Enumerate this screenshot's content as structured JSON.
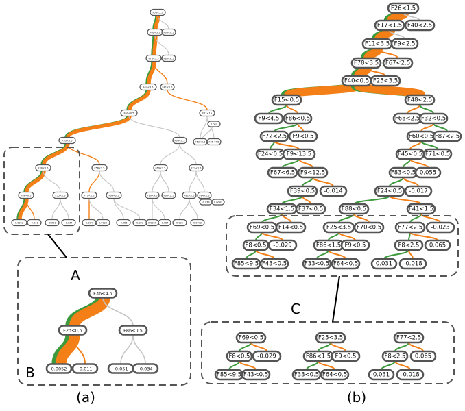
{
  "colors": {
    "orange": "#f57f17",
    "green": "#3c9a3c",
    "gray": "#c4c4c4",
    "node_stroke": "#555555"
  },
  "panel_a": {
    "caption": "(a)",
    "callout_a": "A",
    "callout_b": "B",
    "tree_nodes": [
      "F56<5.5",
      "F62<5.5",
      "F35<0.5",
      "F76<1.5",
      "F80<6.5",
      "F47<3.5",
      "F41<0.5",
      "F69<0.5",
      "F57<15",
      "F33<0.5",
      "F34<0.5",
      "F63<0.5",
      "F36<4.5",
      "F30<0.5",
      "F56<1.5",
      "F69<1.5",
      "F23<0.5",
      "F86<0.5",
      "F55<1.5",
      "F71<1.5",
      "F64<2.5",
      "F10<4.5",
      "F65<2.5",
      "F81<2.5",
      "F84<1.5",
      "0.0052",
      "-0.011",
      "-0.051",
      "-0.034",
      "0.034",
      "0.0020",
      "-0.055",
      "0.023",
      "0.0056",
      "-0.054",
      "0.025",
      "0.0072",
      "-0.033",
      "0.0043",
      "0.047"
    ],
    "zoom_nodes": [
      "F36<4.5",
      "F23<0.5",
      "F86<0.5",
      "0.0052",
      "-0.011",
      "-0.051",
      "-0.034"
    ]
  },
  "panel_b": {
    "caption": "(b)",
    "callout_c": "C",
    "tree_nodes": [
      "F26<1.5",
      "F17<1.5",
      "F40<2.5",
      "F11<3.5",
      "F9<2.5",
      "F78<3.5",
      "F67<2.5",
      "F40<0.5",
      "F25<3.5",
      "F15<0.5",
      "F48<2.5",
      "F9<4.5",
      "F86<0.5",
      "F68<2.5",
      "F32<0.5",
      "F72<2.5",
      "F9<0.5",
      "F60<0.5",
      "F87<2.5",
      "F24<0.5",
      "F9<13.5",
      "F45<0.5",
      "F71<0.5",
      "F67<6.5",
      "F9<12.5",
      "F83<0.5",
      "0.055",
      "F39<0.5",
      "-0.014",
      "F24<0.5",
      "-0.017",
      "F34<1.5",
      "F37<0.5",
      "F88<0.5",
      "F41<1.5",
      "F69<0.5",
      "F14<0.5",
      "F25<3.5",
      "F70<0.5",
      "F77<2.5",
      "-0.023",
      "F8<0.5",
      "-0.029",
      "F86<1.5",
      "F9<0.5",
      "F8<2.5",
      "0.065",
      "F85<9.5",
      "F43<0.5",
      "F33<0.5",
      "F64<0.5",
      "0.031",
      "-0.018"
    ],
    "zoom_nodes": [
      "F69<0.5",
      "F8<0.5",
      "-0.029",
      "F85<9.5",
      "F43<0.5",
      "F25<3.5",
      "F86<1.5",
      "F9<0.5",
      "F33<0.5",
      "F64<0.5",
      "F77<2.5",
      "F8<2.5",
      "0.065",
      "0.031",
      "-0.018"
    ]
  }
}
